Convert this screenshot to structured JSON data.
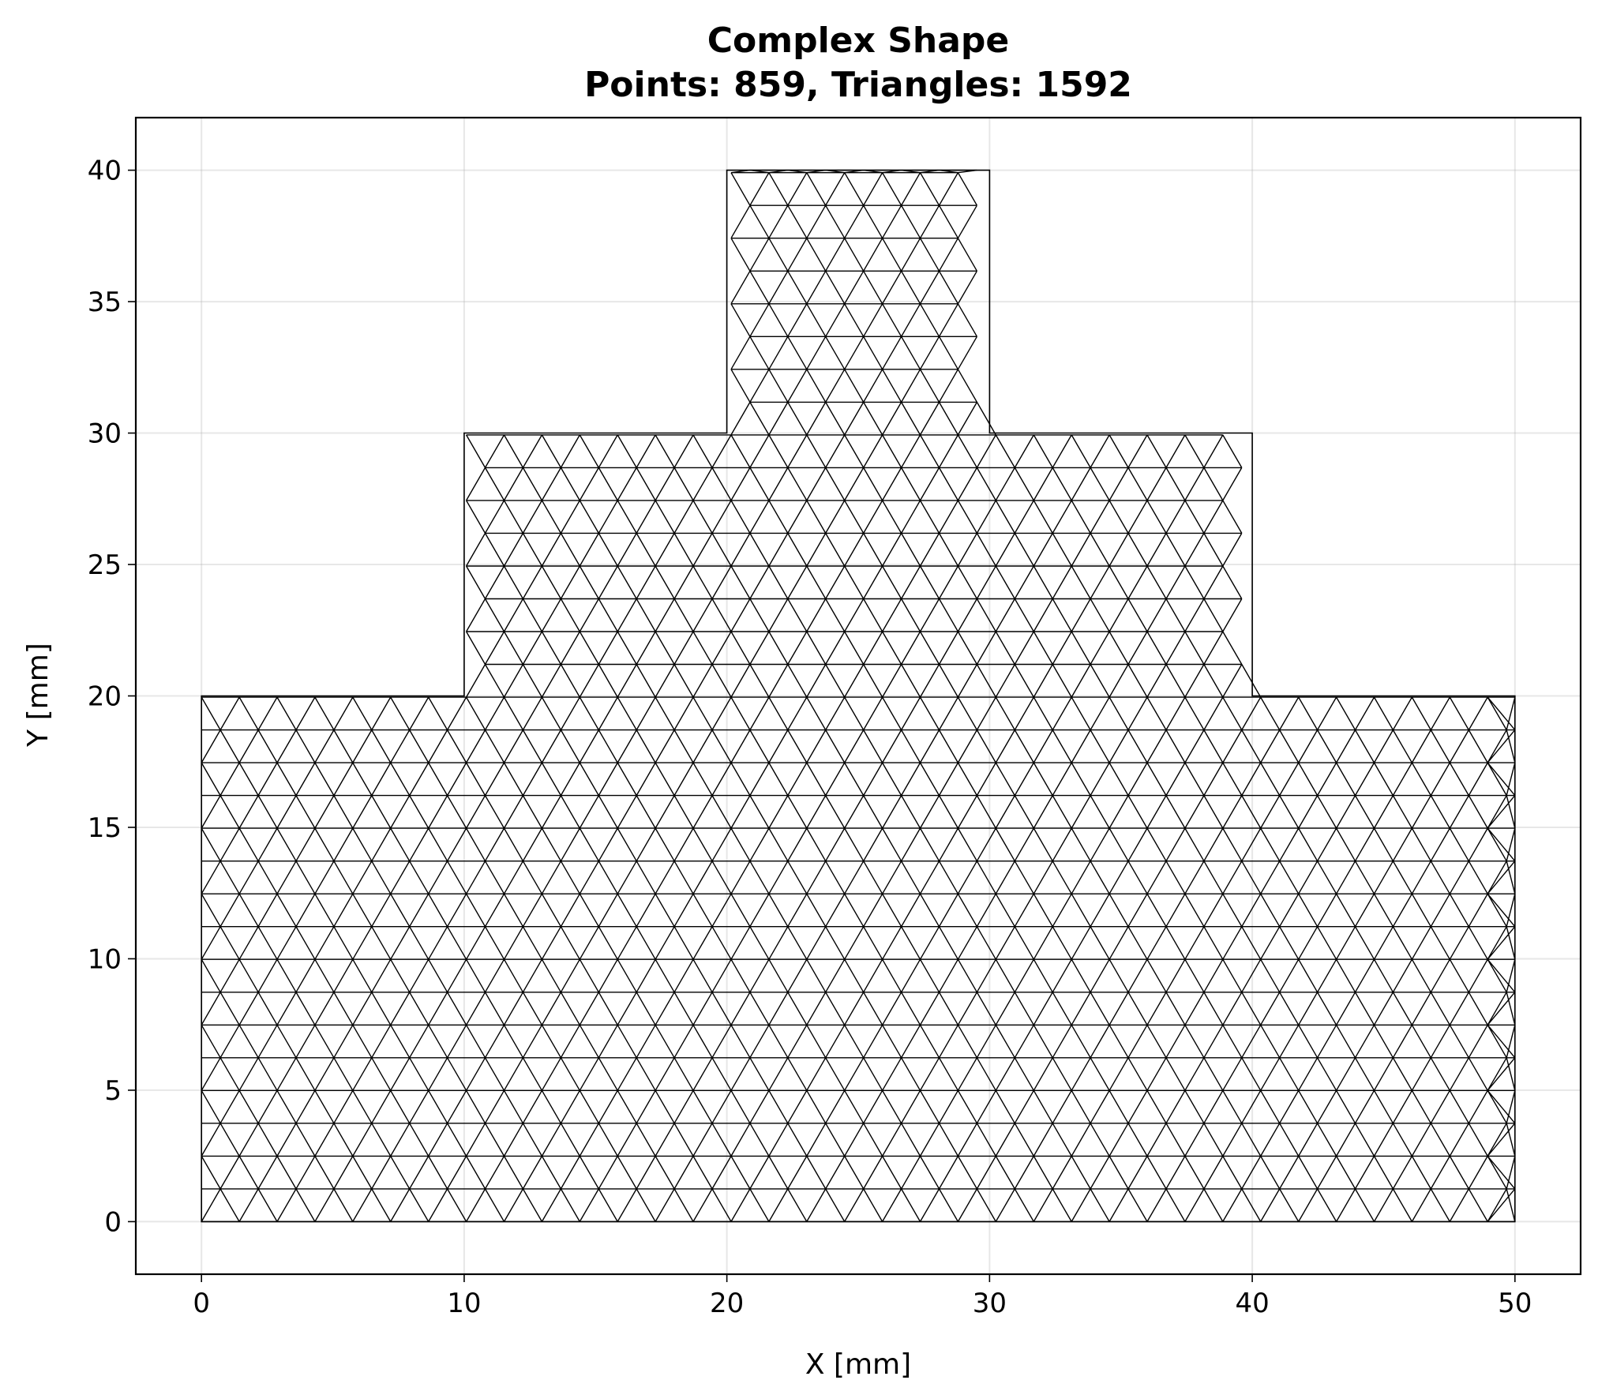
{
  "chart_data": {
    "type": "mesh",
    "title": "Complex Shape",
    "subtitle": "Points: 859, Triangles: 1592",
    "xlabel": "X [mm]",
    "ylabel": "Y [mm]",
    "xlim": [
      -2.5,
      52.5
    ],
    "ylim": [
      -2,
      42
    ],
    "xticks": [
      0,
      10,
      20,
      30,
      40,
      50
    ],
    "yticks": [
      0,
      5,
      10,
      15,
      20,
      25,
      30,
      35,
      40
    ],
    "xtick_labels": [
      "0",
      "10",
      "20",
      "30",
      "40",
      "50"
    ],
    "ytick_labels": [
      "0",
      "5",
      "10",
      "15",
      "20",
      "25",
      "30",
      "35",
      "40"
    ],
    "grid": true,
    "boundary": [
      [
        0,
        0
      ],
      [
        50,
        0
      ],
      [
        50,
        20
      ],
      [
        40,
        20
      ],
      [
        40,
        30
      ],
      [
        30,
        30
      ],
      [
        30,
        40
      ],
      [
        20,
        40
      ],
      [
        20,
        30
      ],
      [
        10,
        30
      ],
      [
        10,
        20
      ],
      [
        0,
        20
      ]
    ],
    "mesh_spacing": 1.44,
    "regions": [
      {
        "x": [
          0,
          50
        ],
        "y": [
          0,
          20
        ]
      },
      {
        "x": [
          10,
          40
        ],
        "y": [
          20,
          30
        ]
      },
      {
        "x": [
          20,
          30
        ],
        "y": [
          30,
          40
        ]
      }
    ],
    "colors": {
      "mesh": "#000000",
      "grid": "#b0b0b0",
      "background": "#ffffff"
    }
  }
}
